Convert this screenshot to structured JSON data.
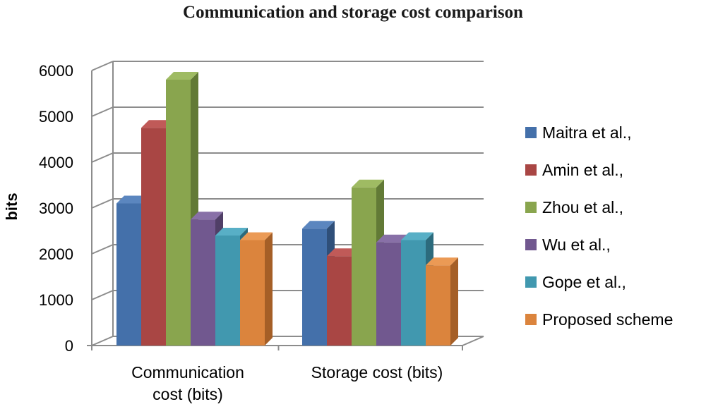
{
  "chart_data": {
    "type": "bar",
    "title": "Communication and storage cost comparison",
    "xlabel": "",
    "ylabel": "bits",
    "ylim": [
      0,
      6000
    ],
    "yticks": [
      0,
      1000,
      2000,
      3000,
      4000,
      5000,
      6000
    ],
    "grid": true,
    "legend_position": "right",
    "categories": [
      "Communication cost (bits)",
      "Storage cost (bits)"
    ],
    "series": [
      {
        "name": "Maitra et al.,",
        "values": [
          3100,
          2550
        ]
      },
      {
        "name": "Amin et al.,",
        "values": [
          4750,
          1950
        ]
      },
      {
        "name": "Zhou et al.,",
        "values": [
          5800,
          3450
        ]
      },
      {
        "name": "Wu et al.,",
        "values": [
          2750,
          2250
        ]
      },
      {
        "name": "Gope et al.,",
        "values": [
          2400,
          2300
        ]
      },
      {
        "name": "Proposed scheme",
        "values": [
          2300,
          1750
        ]
      }
    ],
    "colors": [
      "#4470aa",
      "#a94644",
      "#89a54e",
      "#71588f",
      "#4198af",
      "#db843d"
    ],
    "side_colors": [
      "#2f4f79",
      "#7a3130",
      "#627a36",
      "#503f67",
      "#2c6b7d",
      "#a55f27"
    ],
    "top_colors": [
      "#5b86bf",
      "#c05a58",
      "#9fbb63",
      "#8870a7",
      "#58afc6",
      "#eb9a55"
    ]
  }
}
